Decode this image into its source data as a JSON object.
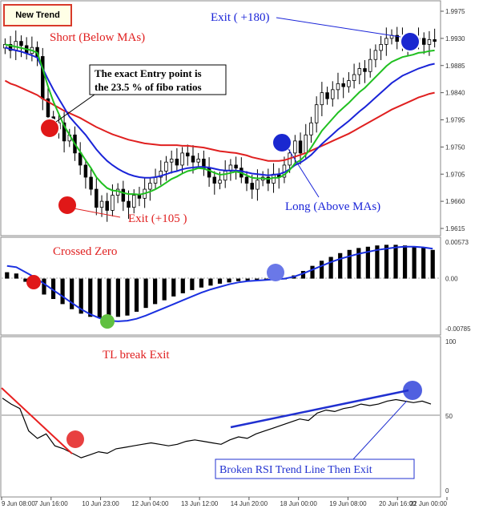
{
  "title_button": "New Trend",
  "colors": {
    "ma_red": "#e02020",
    "ma_blue": "#1a24d8",
    "ma_green": "#20c020",
    "candle": "#000000",
    "signal_red": "#e01818",
    "signal_blue": "#1a28d0",
    "signal_green": "#60c040",
    "macd_signal": "#1a30e0",
    "rsi_line": "#000000",
    "trend_red": "#e82020",
    "trend_blue": "#2030d0"
  },
  "annotations": {
    "short": "Short (Below MAs)",
    "entry_line1": "The exact Entry point is",
    "entry_line2": "the 23.5 % of fibo ratios",
    "exit_short": "Exit  (+105 )",
    "exit_long": "Exit ( +180)",
    "long": "Long (Above MAs)",
    "crossed_zero": "Crossed Zero",
    "tl_break": "TL break Exit",
    "broken_rsi": "Broken RSI Trend Line Then Exit"
  },
  "chart_data": [
    {
      "panel": "price",
      "type": "candlestick",
      "y_ticks": [
        "1.9975",
        "1.9930",
        "1.9885",
        "1.9840",
        "1.9795",
        "1.9750",
        "1.9705",
        "1.9660",
        "1.9615"
      ],
      "ylim": [
        1.9615,
        1.9975
      ],
      "close": [
        1.992,
        1.991,
        1.9925,
        1.9918,
        1.9905,
        1.9915,
        1.99,
        1.983,
        1.98,
        1.978,
        1.979,
        1.976,
        1.977,
        1.974,
        1.972,
        1.97,
        1.968,
        1.965,
        1.966,
        1.9645,
        1.967,
        1.968,
        1.966,
        1.965,
        1.967,
        1.9665,
        1.968,
        1.969,
        1.97,
        1.971,
        1.9725,
        1.973,
        1.972,
        1.974,
        1.9735,
        1.9725,
        1.973,
        1.9715,
        1.97,
        1.969,
        1.9695,
        1.971,
        1.972,
        1.9715,
        1.97,
        1.969,
        1.968,
        1.9695,
        1.97,
        1.969,
        1.9705,
        1.97,
        1.972,
        1.974,
        1.976,
        1.974,
        1.977,
        1.979,
        1.982,
        1.984,
        1.983,
        1.9845,
        1.9855,
        1.985,
        1.986,
        1.987,
        1.988,
        1.9875,
        1.9895,
        1.991,
        1.992,
        1.993,
        1.9935,
        1.9925,
        1.993,
        1.992,
        1.9925,
        1.993,
        1.992,
        1.9928,
        1.9925
      ],
      "ma_red": [
        1.986,
        1.9855,
        1.9852,
        1.9848,
        1.9844,
        1.984,
        1.9836,
        1.983,
        1.9825,
        1.982,
        1.9815,
        1.981,
        1.9806,
        1.9802,
        1.9798,
        1.9793,
        1.9788,
        1.9783,
        1.9779,
        1.9775,
        1.9771,
        1.9768,
        1.9765,
        1.9762,
        1.976,
        1.9758,
        1.9756,
        1.9755,
        1.9754,
        1.9753,
        1.9753,
        1.9753,
        1.9753,
        1.9752,
        1.9752,
        1.9751,
        1.975,
        1.9749,
        1.9747,
        1.9745,
        1.9743,
        1.9742,
        1.9741,
        1.974,
        1.9738,
        1.9736,
        1.9733,
        1.9731,
        1.9729,
        1.9727,
        1.9727,
        1.9727,
        1.9728,
        1.9731,
        1.9734,
        1.9737,
        1.974,
        1.9744,
        1.9748,
        1.9752,
        1.9756,
        1.976,
        1.9764,
        1.9768,
        1.9772,
        1.9777,
        1.9782,
        1.9787,
        1.9792,
        1.9797,
        1.9802,
        1.9807,
        1.9812,
        1.9816,
        1.982,
        1.9824,
        1.9828,
        1.9832,
        1.9835,
        1.9838,
        1.984
      ],
      "ma_blue": [
        1.9915,
        1.9912,
        1.991,
        1.9908,
        1.9905,
        1.9902,
        1.9898,
        1.988,
        1.9862,
        1.9845,
        1.983,
        1.9815,
        1.98,
        1.979,
        1.978,
        1.977,
        1.9758,
        1.9746,
        1.9736,
        1.9727,
        1.972,
        1.9714,
        1.9709,
        1.9705,
        1.9702,
        1.97,
        1.9699,
        1.9699,
        1.97,
        1.9702,
        1.9705,
        1.9708,
        1.971,
        1.9713,
        1.9715,
        1.9716,
        1.9717,
        1.9717,
        1.9716,
        1.9714,
        1.9712,
        1.9711,
        1.9711,
        1.9711,
        1.971,
        1.9708,
        1.9706,
        1.9705,
        1.9704,
        1.9703,
        1.9704,
        1.9705,
        1.9708,
        1.9713,
        1.972,
        1.9724,
        1.973,
        1.9737,
        1.9746,
        1.9755,
        1.9763,
        1.9771,
        1.9779,
        1.9786,
        1.9793,
        1.9801,
        1.9809,
        1.9816,
        1.9824,
        1.9832,
        1.984,
        1.9848,
        1.9856,
        1.9862,
        1.9868,
        1.9872,
        1.9876,
        1.988,
        1.9883,
        1.9886,
        1.9888
      ],
      "ma_green": [
        1.992,
        1.9918,
        1.9916,
        1.9914,
        1.9912,
        1.991,
        1.9906,
        1.988,
        1.985,
        1.9825,
        1.9805,
        1.9785,
        1.977,
        1.9755,
        1.9742,
        1.9728,
        1.9715,
        1.97,
        1.969,
        1.9682,
        1.9678,
        1.9677,
        1.9674,
        1.9672,
        1.9672,
        1.9671,
        1.9673,
        1.9676,
        1.968,
        1.9685,
        1.9691,
        1.9697,
        1.9701,
        1.9706,
        1.971,
        1.9712,
        1.9715,
        1.9714,
        1.9711,
        1.9707,
        1.9704,
        1.9705,
        1.9707,
        1.9709,
        1.9707,
        1.9703,
        1.9699,
        1.9698,
        1.9698,
        1.9697,
        1.9699,
        1.9699,
        1.9704,
        1.9712,
        1.9723,
        1.9728,
        1.9737,
        1.9749,
        1.9763,
        1.9777,
        1.9787,
        1.9797,
        1.9807,
        1.9815,
        1.9823,
        1.9832,
        1.9841,
        1.9848,
        1.9857,
        1.9866,
        1.9875,
        1.9884,
        1.9891,
        1.9895,
        1.9899,
        1.9901,
        1.9903,
        1.9906,
        1.9907,
        1.9909,
        1.991
      ]
    },
    {
      "panel": "macd",
      "type": "bar",
      "y_ticks": [
        "0.00573",
        "0.00",
        "-0.00785"
      ],
      "ylim": [
        -0.00785,
        0.00573
      ],
      "histogram": [
        0.001,
        0.0008,
        -0.0005,
        -0.0015,
        -0.0025,
        -0.0032,
        -0.004,
        -0.0048,
        -0.0055,
        -0.006,
        -0.0062,
        -0.0063,
        -0.006,
        -0.0058,
        -0.0052,
        -0.0046,
        -0.004,
        -0.0034,
        -0.0028,
        -0.0023,
        -0.0018,
        -0.0014,
        -0.0011,
        -0.0008,
        -0.0006,
        -0.0004,
        -0.0003,
        -0.0002,
        -0.0001,
        -0.0001,
        0.0,
        0.0005,
        0.0012,
        0.002,
        0.0028,
        0.0034,
        0.004,
        0.0045,
        0.0048,
        0.005,
        0.0052,
        0.0053,
        0.0053,
        0.0052,
        0.005,
        0.0048,
        0.0045
      ],
      "signal": [
        0.002,
        0.0018,
        0.001,
        0.0002,
        -0.0008,
        -0.0018,
        -0.0028,
        -0.0038,
        -0.0048,
        -0.0056,
        -0.0062,
        -0.0066,
        -0.0067,
        -0.0066,
        -0.0063,
        -0.0058,
        -0.0052,
        -0.0046,
        -0.004,
        -0.0034,
        -0.0028,
        -0.0022,
        -0.0017,
        -0.0013,
        -0.0009,
        -0.0006,
        -0.0004,
        -0.0003,
        -0.0002,
        -0.0001,
        0.0,
        0.0003,
        0.0008,
        0.0014,
        0.002,
        0.0026,
        0.0031,
        0.0035,
        0.0039,
        0.0042,
        0.0045,
        0.0047,
        0.0049,
        0.005,
        0.005,
        0.0049,
        0.0047
      ]
    },
    {
      "panel": "rsi",
      "type": "line",
      "y_ticks": [
        "100",
        "50",
        "0"
      ],
      "ylim": [
        0,
        100
      ],
      "values": [
        62,
        58,
        55,
        40,
        35,
        38,
        30,
        28,
        25,
        22,
        24,
        26,
        25,
        28,
        29,
        30,
        31,
        32,
        31,
        30,
        31,
        33,
        34,
        33,
        32,
        31,
        34,
        36,
        35,
        38,
        40,
        42,
        44,
        46,
        48,
        47,
        52,
        54,
        53,
        55,
        56,
        58,
        57,
        58,
        60,
        61,
        60,
        59,
        60,
        58
      ]
    }
  ],
  "x_ticks": [
    "9 Jun 08:00",
    "7 Jun 16:00",
    "10 Jun 23:00",
    "12 Jun 04:00",
    "13 Jun 12:00",
    "14 Jun 20:00",
    "18 Jun 00:00",
    "19 Jun 08:00",
    "20 Jun 16:00",
    "22 Jun 00:00"
  ]
}
